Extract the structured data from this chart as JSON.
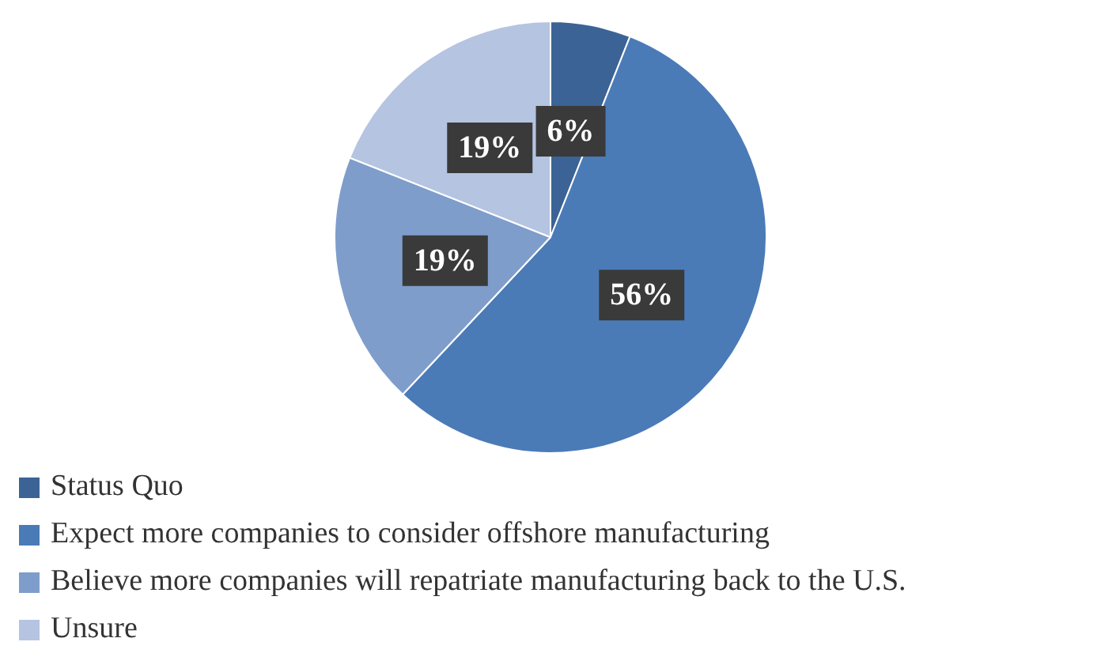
{
  "chart_data": {
    "type": "pie",
    "categories": [
      "Status Quo",
      "Expect more companies to consider offshore manufacturing",
      "Believe more companies will repatriate manufacturing back to the U.S.",
      "Unsure"
    ],
    "values": [
      6,
      56,
      19,
      19
    ],
    "colors": [
      "#3b6396",
      "#4a7bb7",
      "#7f9dcb",
      "#b4c4e1"
    ],
    "value_labels": [
      "6%",
      "56%",
      "19%",
      "19%"
    ],
    "legend": "bottom"
  }
}
